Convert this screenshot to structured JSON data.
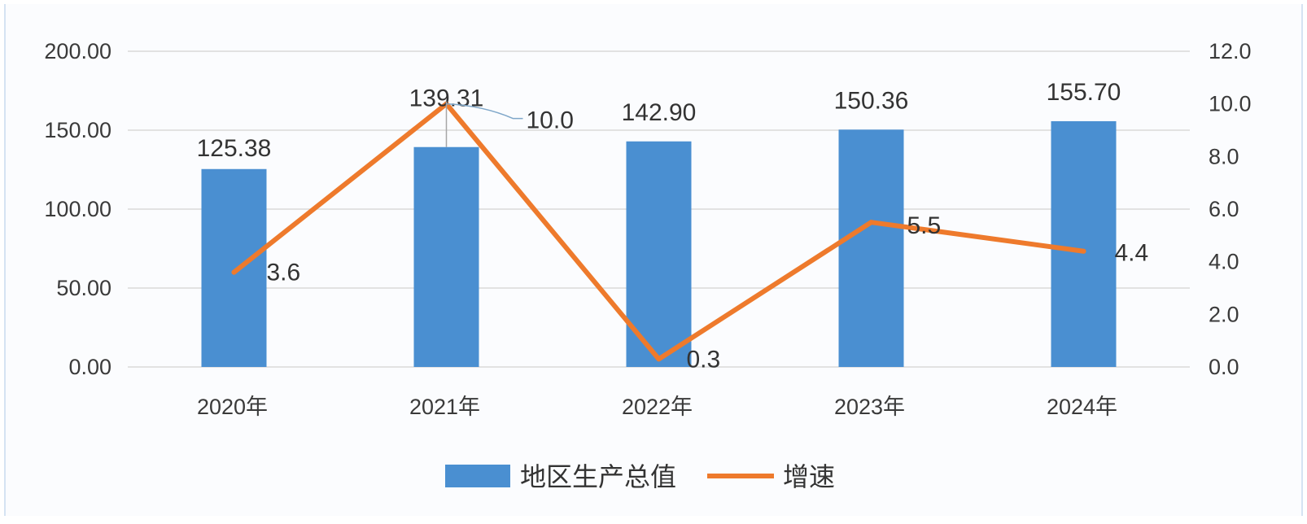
{
  "chart_data": {
    "type": "bar+line",
    "categories": [
      "2020年",
      "2021年",
      "2022年",
      "2023年",
      "2024年"
    ],
    "series": [
      {
        "name": "地区生产总值",
        "type": "bar",
        "axis": "left",
        "values": [
          125.38,
          139.31,
          142.9,
          150.36,
          155.7
        ],
        "labels": [
          "125.38",
          "139.31",
          "142.90",
          "150.36",
          "155.70"
        ],
        "color": "#4a8fd1"
      },
      {
        "name": "增速",
        "type": "line",
        "axis": "right",
        "values": [
          3.6,
          10.0,
          0.3,
          5.5,
          4.4
        ],
        "labels": [
          "3.6",
          "10.0",
          "0.3",
          "5.5",
          "4.4"
        ],
        "color": "#ee7a2c"
      }
    ],
    "y_left": {
      "range": [
        0,
        200
      ],
      "ticks": [
        0,
        50,
        100,
        150,
        200
      ],
      "tick_labels": [
        "0.00",
        "50.00",
        "100.00",
        "150.00",
        "200.00"
      ]
    },
    "y_right": {
      "range": [
        0,
        12
      ],
      "ticks": [
        0,
        2,
        4,
        6,
        8,
        10,
        12
      ],
      "tick_labels": [
        "0.0",
        "2.0",
        "4.0",
        "6.0",
        "8.0",
        "10.0",
        "12.0"
      ]
    },
    "grid": true,
    "legend": "bottom-center",
    "gridline_color": "#d9d9d9"
  }
}
